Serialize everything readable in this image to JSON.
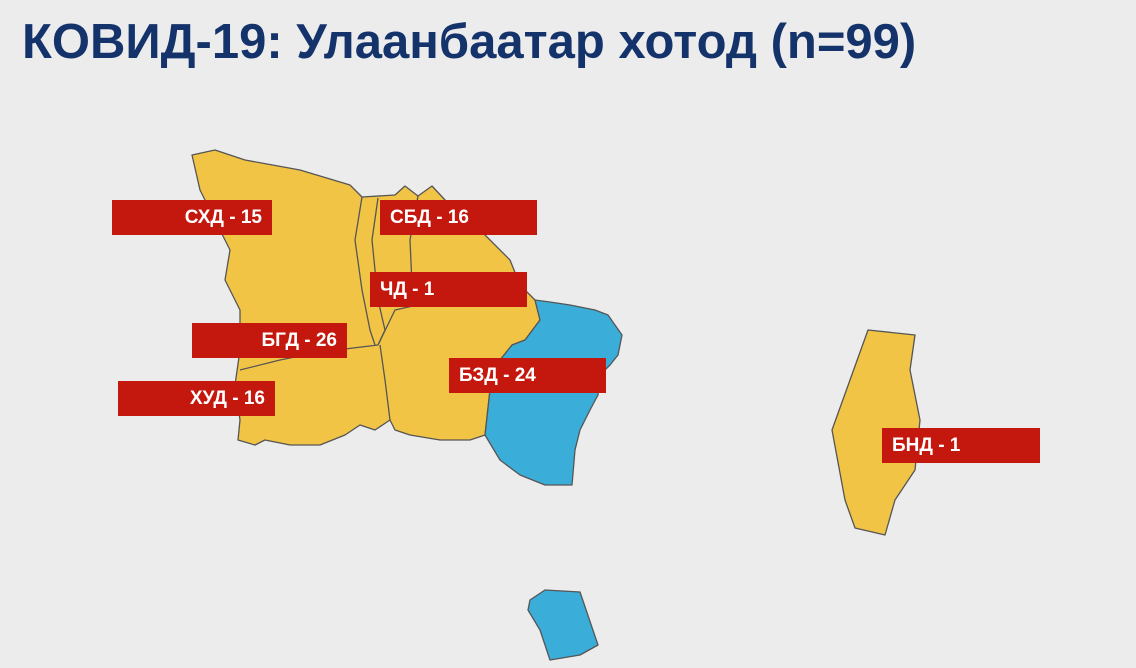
{
  "title": "КОВИД-19: Улаанбаатар хотод (n=99)",
  "colors": {
    "affected": "#f2c446",
    "other": "#3aaed8",
    "label_bg": "#c4180e",
    "title": "#15336b",
    "background": "#ececec"
  },
  "districts": [
    {
      "label": "СХД - 15",
      "cases": 15,
      "status": "affected"
    },
    {
      "label": "СБД - 16",
      "cases": 16,
      "status": "affected"
    },
    {
      "label": "ЧД - 1",
      "cases": 1,
      "status": "affected"
    },
    {
      "label": "БГД - 26",
      "cases": 26,
      "status": "affected"
    },
    {
      "label": "ХУД - 16",
      "cases": 16,
      "status": "affected"
    },
    {
      "label": "БЗД - 24",
      "cases": 24,
      "status": "affected"
    },
    {
      "label": "БНД - 1",
      "cases": 1,
      "status": "affected"
    }
  ]
}
